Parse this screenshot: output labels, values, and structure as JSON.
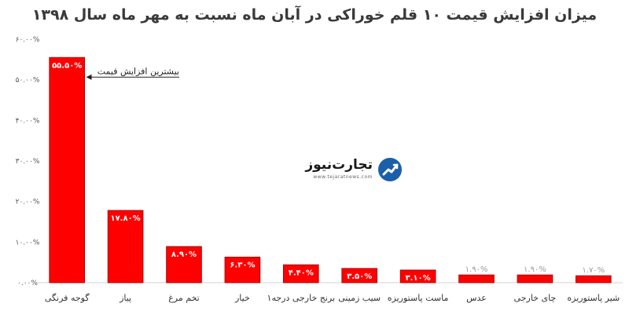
{
  "chart_data": {
    "type": "bar",
    "title": "میزان افزایش قیمت ۱۰ قلم خوراکی در آبان ماه نسبت به مهر ماه سال ۱۳۹۸",
    "xlabel": "",
    "ylabel": "",
    "ylim": [
      0,
      60
    ],
    "yticks": [
      0,
      10,
      20,
      30,
      40,
      50,
      60
    ],
    "ytick_labels": [
      "۰.۰۰%",
      "۱۰.۰۰%",
      "۲۰.۰۰%",
      "۳۰.۰۰%",
      "۴۰.۰۰%",
      "۵۰.۰۰%",
      "۶۰.۰۰%"
    ],
    "categories": [
      "گوجه فرنگی",
      "پیاز",
      "تخم مرغ",
      "خیار",
      "برنج خارجی درجه۱",
      "سیب زمینی",
      "ماست پاستوریزه",
      "عدس",
      "چای خارجی",
      "شیر پاستوریزه"
    ],
    "values": [
      55.5,
      17.8,
      8.9,
      6.3,
      4.4,
      3.5,
      3.1,
      1.9,
      1.9,
      1.7
    ],
    "data_labels": [
      "۵۵.۵۰%",
      "۱۷.۸۰%",
      "۸.۹۰%",
      "۶.۳۰%",
      "۴.۴۰%",
      "۳.۵۰%",
      "۳.۱۰%",
      "۱.۹۰%",
      "۱.۹۰%",
      "۱.۷۰%"
    ],
    "annotation": {
      "text": "بیشترین افزایش قیمت",
      "target_index": 0
    },
    "grid": false,
    "bar_color": "#ff0000",
    "bar_border_color": "#b00000"
  },
  "logo": {
    "name": "تجارت‌نیوز",
    "url": "www.tejaratnews.com",
    "icon": "tejaratnews-logo-icon",
    "accent": "#e31b23",
    "brand": "#1b5fa8"
  }
}
